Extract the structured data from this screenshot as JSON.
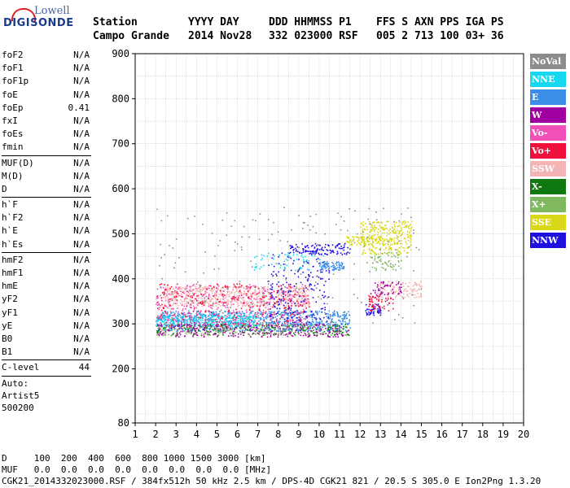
{
  "logo": {
    "line1": "Lowell",
    "line2": "DIGISONDE"
  },
  "header": {
    "col1_label": "Station",
    "col1_value": "Campo Grande",
    "col2_label": "YYYY DAY",
    "col2_value": "2014 Nov28",
    "col3_label": "DDD HHMMSS P1",
    "col3_value": "332 023000 RSF",
    "col4_label": "FFS S AXN PPS IGA PS",
    "col4_value": "005 2 713 100 03+ 36"
  },
  "params": {
    "group1": [
      {
        "name": "foF2",
        "value": "N/A"
      },
      {
        "name": "foF1",
        "value": "N/A"
      },
      {
        "name": "foF1p",
        "value": "N/A"
      },
      {
        "name": "foE",
        "value": "N/A"
      },
      {
        "name": "foEp",
        "value": "0.41"
      },
      {
        "name": "fxI",
        "value": "N/A"
      },
      {
        "name": "foEs",
        "value": "N/A"
      },
      {
        "name": "fmin",
        "value": "N/A"
      }
    ],
    "group2": [
      {
        "name": "MUF(D)",
        "value": "N/A"
      },
      {
        "name": "M(D)",
        "value": "N/A"
      },
      {
        "name": "D",
        "value": "N/A"
      }
    ],
    "group3": [
      {
        "name": "h`F",
        "value": "N/A"
      },
      {
        "name": "h`F2",
        "value": "N/A"
      },
      {
        "name": "h`E",
        "value": "N/A"
      },
      {
        "name": "h`Es",
        "value": "N/A"
      }
    ],
    "group4": [
      {
        "name": "hmF2",
        "value": "N/A"
      },
      {
        "name": "hmF1",
        "value": "N/A"
      },
      {
        "name": "hmE",
        "value": "N/A"
      },
      {
        "name": "yF2",
        "value": "N/A"
      },
      {
        "name": "yF1",
        "value": "N/A"
      },
      {
        "name": "yE",
        "value": "N/A"
      },
      {
        "name": "B0",
        "value": "N/A"
      },
      {
        "name": "B1",
        "value": "N/A"
      }
    ],
    "group5": [
      {
        "name": "C-level",
        "value": "44"
      }
    ],
    "auto": [
      "Auto:",
      "Artist5",
      "500200"
    ]
  },
  "legend": [
    {
      "label": "NoVal",
      "color": "#8c8c8c"
    },
    {
      "label": "NNE",
      "color": "#18d8f0"
    },
    {
      "label": "E",
      "color": "#3a8ee8"
    },
    {
      "label": "W",
      "color": "#a000a0"
    },
    {
      "label": "Vo-",
      "color": "#f050b8"
    },
    {
      "label": "Vo+",
      "color": "#f0103c"
    },
    {
      "label": "SSW",
      "color": "#f4b4b4"
    },
    {
      "label": "X-",
      "color": "#107810"
    },
    {
      "label": "X+",
      "color": "#80b860"
    },
    {
      "label": "SSE",
      "color": "#d8d818"
    },
    {
      "label": "NNW",
      "color": "#2010e0"
    }
  ],
  "footer": {
    "line1": "D     100  200  400  600  800 1000 1500 3000 [km]",
    "line2": "MUF   0.0  0.0  0.0  0.0  0.0  0.0  0.0  0.0 [MHz]",
    "line3": "CGK21_2014332023000.RSF / 384fx512h 50 kHz 2.5 km / DPS-4D CGK21 821 / 20.5 S 305.0 E Ion2Png 1.3.20"
  },
  "chart_data": {
    "type": "scatter",
    "xlim": [
      1,
      20
    ],
    "ylim": [
      80,
      900
    ],
    "x_ticks": [
      1,
      2,
      3,
      4,
      5,
      6,
      7,
      8,
      9,
      10,
      11,
      12,
      13,
      14,
      15,
      16,
      17,
      18,
      19,
      20
    ],
    "y_ticks": [
      80,
      200,
      300,
      400,
      500,
      600,
      700,
      800,
      900
    ],
    "grid": true,
    "legend_position": "right",
    "clusters": [
      {
        "series": "E",
        "x": [
          2.0,
          11.5
        ],
        "y": [
          285,
          330
        ],
        "n": 900
      },
      {
        "series": "NNE",
        "x": [
          2.0,
          7.0
        ],
        "y": [
          295,
          320
        ],
        "n": 300
      },
      {
        "series": "SSW",
        "x": [
          2.3,
          9.5
        ],
        "y": [
          340,
          385
        ],
        "n": 700
      },
      {
        "series": "Vo-",
        "x": [
          2.0,
          9.5
        ],
        "y": [
          300,
          390
        ],
        "n": 350
      },
      {
        "series": "Vo+",
        "x": [
          2.0,
          9.5
        ],
        "y": [
          290,
          390
        ],
        "n": 300
      },
      {
        "series": "X+",
        "x": [
          2.0,
          11.5
        ],
        "y": [
          275,
          300
        ],
        "n": 250
      },
      {
        "series": "X-",
        "x": [
          2.0,
          11.5
        ],
        "y": [
          275,
          300
        ],
        "n": 150
      },
      {
        "series": "W",
        "x": [
          2.0,
          11.5
        ],
        "y": [
          272,
          300
        ],
        "n": 250
      },
      {
        "series": "NNW",
        "x": [
          7.5,
          10.5
        ],
        "y": [
          300,
          460
        ],
        "n": 200
      },
      {
        "series": "NNW",
        "x": [
          8.5,
          11.5
        ],
        "y": [
          455,
          480
        ],
        "n": 120
      },
      {
        "series": "NNW",
        "x": [
          12.2,
          13.0
        ],
        "y": [
          320,
          345
        ],
        "n": 50
      },
      {
        "series": "E",
        "x": [
          10.0,
          11.2
        ],
        "y": [
          420,
          440
        ],
        "n": 80
      },
      {
        "series": "SSE",
        "x": [
          12.0,
          14.5
        ],
        "y": [
          455,
          530
        ],
        "n": 300
      },
      {
        "series": "SSE",
        "x": [
          11.3,
          13.0
        ],
        "y": [
          475,
          495
        ],
        "n": 80
      },
      {
        "series": "X+",
        "x": [
          12.5,
          14.0
        ],
        "y": [
          420,
          460
        ],
        "n": 60
      },
      {
        "series": "SSW",
        "x": [
          12.8,
          15.0
        ],
        "y": [
          360,
          395
        ],
        "n": 120
      },
      {
        "series": "Vo+",
        "x": [
          12.4,
          13.6
        ],
        "y": [
          330,
          365
        ],
        "n": 60
      },
      {
        "series": "W",
        "x": [
          12.5,
          14.0
        ],
        "y": [
          365,
          395
        ],
        "n": 50
      },
      {
        "series": "NoVal",
        "x": [
          2.0,
          15.0
        ],
        "y": [
          300,
          560
        ],
        "n": 200
      },
      {
        "series": "NNE",
        "x": [
          6.8,
          10.2
        ],
        "y": [
          420,
          460
        ],
        "n": 60
      }
    ]
  }
}
